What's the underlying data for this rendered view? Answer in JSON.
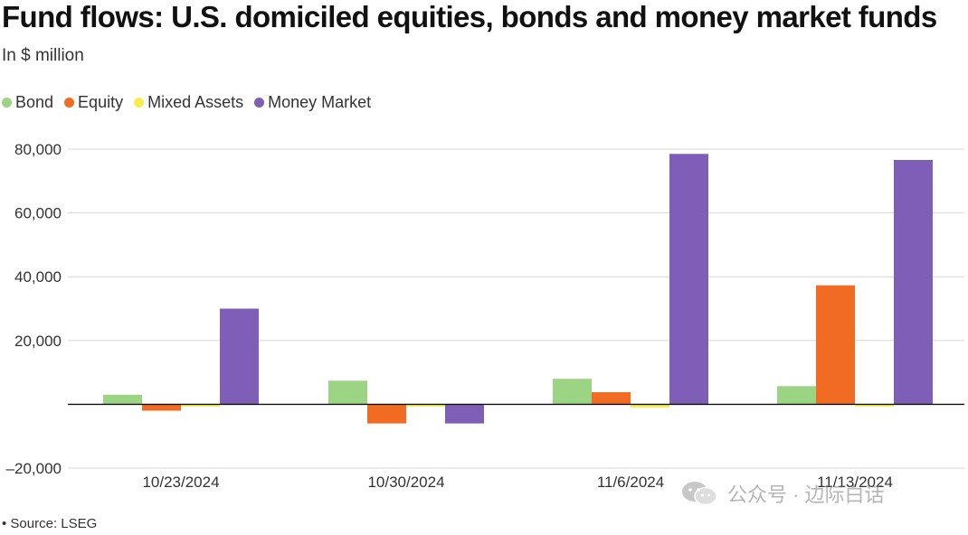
{
  "colors": {
    "bond": "#9bd583",
    "equity": "#f26b22",
    "mixed": "#f8ee4e",
    "money": "#7f5eb7",
    "grid": "#d7d7d7",
    "axis": "#111111",
    "text": "#333333"
  },
  "header": {
    "title": "Fund flows: U.S. domiciled equities, bonds and money market funds",
    "subtitle": "In $ million"
  },
  "footer": {
    "source": "• Source: LSEG"
  },
  "watermark": {
    "text": "公众号 · 边际白话"
  },
  "chart_data": {
    "type": "bar",
    "title": "Fund flows: U.S. domiciled equities, bonds and money market funds",
    "ylabel": "In $ million",
    "xlabel": "",
    "categories": [
      "10/23/2024",
      "10/30/2024",
      "11/6/2024",
      "11/13/2024"
    ],
    "series": [
      {
        "name": "Bond",
        "color": "#9bd583",
        "values": [
          3000,
          7400,
          8000,
          5700
        ]
      },
      {
        "name": "Equity",
        "color": "#f26b22",
        "values": [
          -2000,
          -6000,
          3800,
          37300
        ]
      },
      {
        "name": "Mixed Assets",
        "color": "#f8ee4e",
        "values": [
          -700,
          -700,
          -1000,
          -700
        ]
      },
      {
        "name": "Money Market",
        "color": "#7f5eb7",
        "values": [
          30000,
          -6000,
          78500,
          76600
        ]
      }
    ],
    "ylim": [
      -20000,
      80000
    ],
    "yticks": [
      -20000,
      0,
      20000,
      40000,
      60000,
      80000
    ],
    "ytick_labels": [
      "–20,000",
      "",
      "20,000",
      "40,000",
      "60,000",
      "80,000"
    ],
    "grid": true,
    "legend_position": "top-left"
  }
}
